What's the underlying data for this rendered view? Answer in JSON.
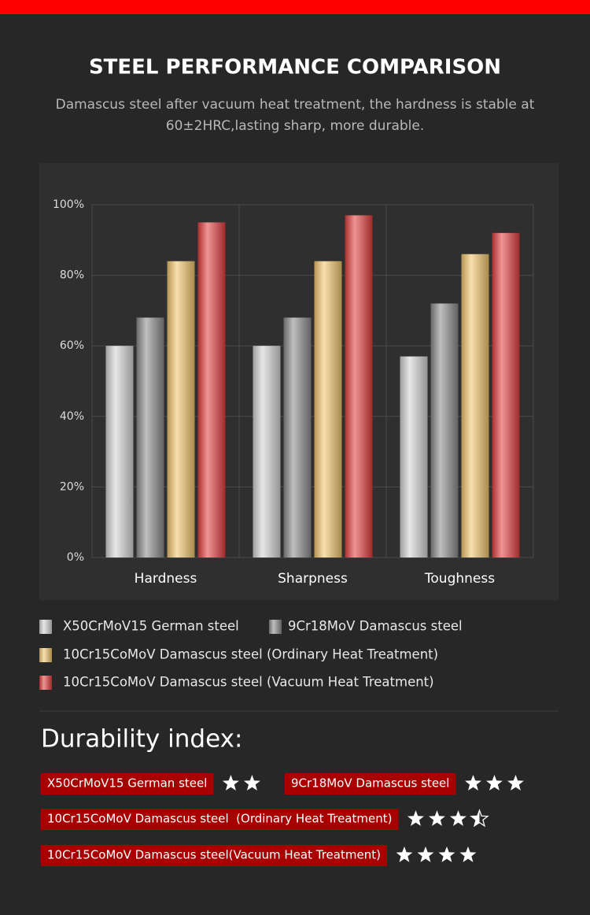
{
  "chart_data": {
    "type": "bar",
    "title": "STEEL PERFORMANCE COMPARISON",
    "subtitle": "Damascus steel after vacuum heat treatment, the hardness is stable at 60±2HRC,lasting sharp, more durable.",
    "categories": [
      "Hardness",
      "Sharpness",
      "Toughness"
    ],
    "series": [
      {
        "name": "X50CrMoV15 German steel",
        "color": "#d4d4d4",
        "values": [
          60,
          60,
          57
        ]
      },
      {
        "name": "9Cr18MoV Damascus steel",
        "color": "#8a8a8a",
        "values": [
          68,
          68,
          72
        ]
      },
      {
        "name": "10Cr15CoMoV Damascus steel (Ordinary Heat Treatment)",
        "color": "#f2c56c",
        "values": [
          84,
          84,
          86
        ]
      },
      {
        "name": "10Cr15CoMoV Damascus steel (Vacuum Heat Treatment)",
        "color": "#e23d3d",
        "values": [
          95,
          97,
          92
        ]
      }
    ],
    "ylim": [
      0,
      100
    ],
    "yticks": [
      {
        "value": 0,
        "label": "0%"
      },
      {
        "value": 20,
        "label": "20%"
      },
      {
        "value": 40,
        "label": "40%"
      },
      {
        "value": 60,
        "label": "60%"
      },
      {
        "value": 80,
        "label": "80%"
      },
      {
        "value": 100,
        "label": "100%"
      }
    ],
    "grid": true
  },
  "durability": {
    "title": "Durability index:",
    "items": [
      {
        "name": "X50CrMoV15 German steel",
        "stars": 2
      },
      {
        "name": "9Cr18MoV Damascus steel",
        "stars": 3
      },
      {
        "name": "10Cr15CoMoV Damascus steel  (Ordinary Heat Treatment)",
        "stars": 3.5
      },
      {
        "name": "10Cr15CoMoV Damascus steel(Vacuum Heat Treatment)",
        "stars": 4
      }
    ]
  }
}
